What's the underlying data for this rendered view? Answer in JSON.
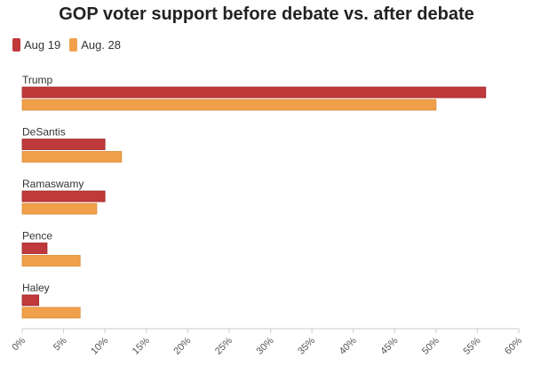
{
  "chart_data": {
    "type": "bar",
    "orientation": "horizontal",
    "title": "GOP voter support before debate vs. after debate",
    "categories": [
      "Trump",
      "DeSantis",
      "Ramaswamy",
      "Pence",
      "Haley"
    ],
    "series": [
      {
        "name": "Aug 19",
        "color": "#c0393b",
        "values": [
          56,
          10,
          10,
          3,
          2
        ]
      },
      {
        "name": "Aug. 28",
        "color": "#f0a04b",
        "values": [
          50,
          12,
          9,
          7,
          7
        ]
      }
    ],
    "xlim": [
      0,
      60
    ],
    "xticks": [
      0,
      5,
      10,
      15,
      20,
      25,
      30,
      35,
      40,
      45,
      50,
      55,
      60
    ],
    "tick_suffix": "%",
    "grid": false,
    "legend_position": "top-left"
  }
}
